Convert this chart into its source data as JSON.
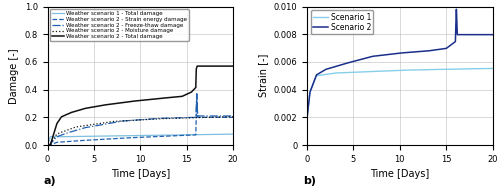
{
  "fig_width": 5.0,
  "fig_height": 1.86,
  "dpi": 100,
  "subplot_a": {
    "xlabel": "Time [Days]",
    "ylabel": "Damage [-]",
    "xlim": [
      0,
      20
    ],
    "ylim": [
      0,
      1
    ],
    "yticks": [
      0,
      0.2,
      0.4,
      0.6,
      0.8,
      1.0
    ],
    "xticks": [
      0,
      5,
      10,
      15,
      20
    ],
    "label_a": "a)",
    "legend": [
      "Weather scenario 1 - Total damage",
      "Weather scenario 2 - Strain energy damage",
      "Weather scenario 2 - Freeze-thaw damage",
      "Weather scenario 2 - Moisture damage",
      "Weather scenario 2 - Total damage"
    ],
    "color_s1_total": "#7fbfdf",
    "color_s2_strain": "#2060b0",
    "color_s2_freeze": "#2060b0",
    "color_s2_moisture": "#111111",
    "color_s2_total": "#111111"
  },
  "subplot_b": {
    "xlabel": "Time [Days]",
    "ylabel": "Strain [-]",
    "xlim": [
      0,
      20
    ],
    "ylim": [
      0,
      0.01
    ],
    "yticks": [
      0,
      0.002,
      0.004,
      0.006,
      0.008,
      0.01
    ],
    "xticks": [
      0,
      5,
      10,
      15,
      20
    ],
    "label_b": "b)",
    "legend": [
      "Scenario 1",
      "Scenario 2"
    ],
    "color_s1": "#87CEEB",
    "color_s2": "#1a2f8a"
  }
}
